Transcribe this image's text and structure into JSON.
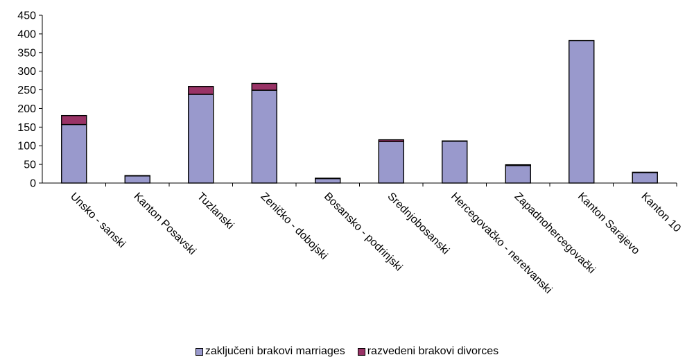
{
  "chart_data": {
    "type": "bar",
    "stacked": true,
    "categories": [
      "Unsko - sanski",
      "Kanton Posavski",
      "Tuzlanski",
      "Zeničko - dobojski",
      "Bosansko - podrinjski",
      "Srednjobosanski",
      "Hercegovačko - neretvanski",
      "Zapadnohercegovački",
      "Kanton Sarajevo",
      "Kanton 10"
    ],
    "series": [
      {
        "name": "zaključeni brakovi marriages",
        "color": "#9999cc",
        "values": [
          157,
          19,
          238,
          249,
          12,
          111,
          112,
          47,
          382,
          28
        ]
      },
      {
        "name": "razvedeni brakovi divorces",
        "color": "#993366",
        "values": [
          24,
          1,
          21,
          18,
          1,
          5,
          1,
          2,
          0,
          1
        ]
      }
    ],
    "ylim": [
      0,
      450
    ],
    "yticks": [
      0,
      50,
      100,
      150,
      200,
      250,
      300,
      350,
      400,
      450
    ],
    "grid": false,
    "legend_position": "bottom"
  }
}
